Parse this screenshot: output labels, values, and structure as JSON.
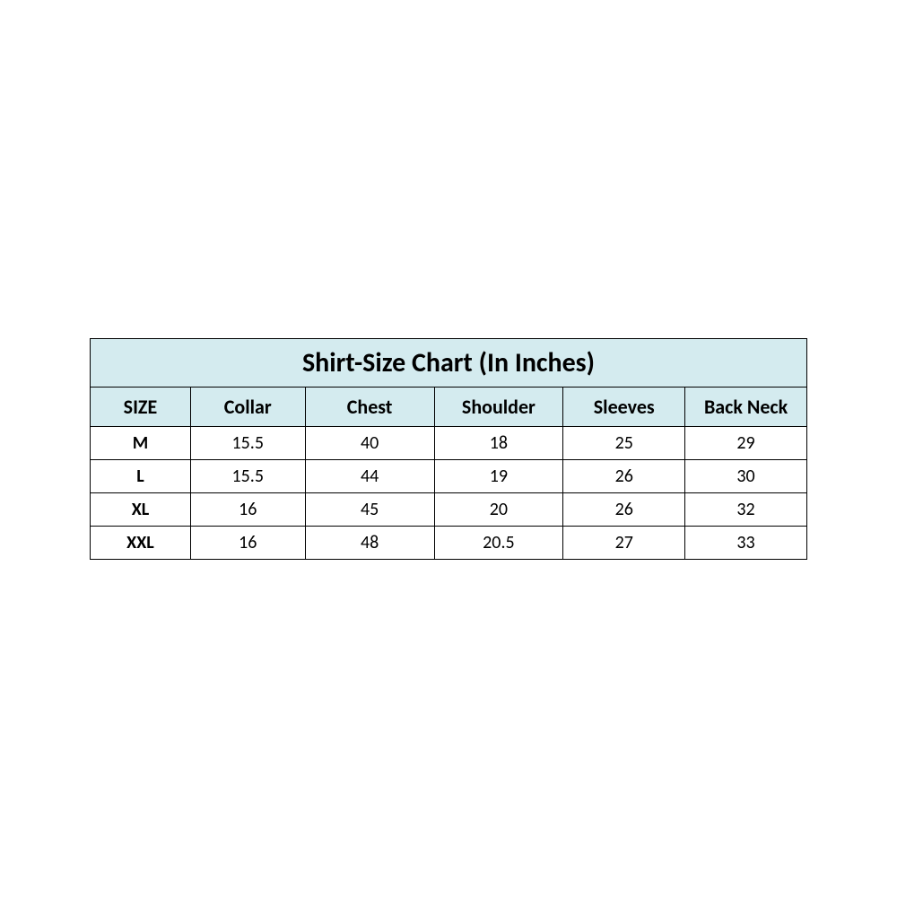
{
  "table": {
    "type": "table",
    "title": "Shirt-Size Chart (In Inches)",
    "columns": [
      "SIZE",
      "Collar",
      "Chest",
      "Shoulder",
      "Sleeves",
      "Back Neck"
    ],
    "rows": [
      [
        "M",
        "15.5",
        "40",
        "18",
        "25",
        "29"
      ],
      [
        "L",
        "15.5",
        "44",
        "19",
        "26",
        "30"
      ],
      [
        "XL",
        "16",
        "45",
        "20",
        "26",
        "32"
      ],
      [
        "XXL",
        "16",
        "48",
        "20.5",
        "27",
        "33"
      ]
    ],
    "header_bg": "#d4ebef",
    "border_color": "#000000",
    "background_color": "#ffffff",
    "title_fontsize": 30,
    "header_fontsize": 22,
    "cell_fontsize": 20,
    "first_col_bold": true,
    "column_widths_pct": [
      14,
      16,
      18,
      18,
      17,
      17
    ]
  }
}
